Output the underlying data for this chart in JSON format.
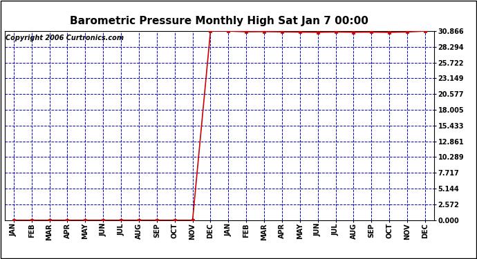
{
  "title": "Barometric Pressure Monthly High Sat Jan 7 00:00",
  "copyright": "Copyright 2006 Curtronics.com",
  "x_labels": [
    "JAN",
    "FEB",
    "MAR",
    "APR",
    "MAY",
    "JUN",
    "JUL",
    "AUG",
    "SEP",
    "OCT",
    "NOV",
    "DEC",
    "JAN",
    "FEB",
    "MAR",
    "APR",
    "MAY",
    "JUN",
    "JUL",
    "AUG",
    "SEP",
    "OCT",
    "NOV",
    "DEC"
  ],
  "y_max": 30.866,
  "y_min": 0.0,
  "y_ticks": [
    0.0,
    2.572,
    5.144,
    7.717,
    10.289,
    12.861,
    15.433,
    18.005,
    20.577,
    23.149,
    25.722,
    28.294,
    30.866
  ],
  "data_values": [
    0.0,
    0.0,
    0.0,
    0.0,
    0.0,
    0.0,
    0.0,
    0.0,
    0.0,
    0.0,
    0.0,
    30.866,
    30.866,
    30.75,
    30.78,
    30.74,
    30.7,
    30.67,
    30.72,
    30.68,
    30.7,
    30.66,
    30.72,
    30.866
  ],
  "line_color": "#CC0000",
  "marker_color": "#CC0000",
  "grid_color": "#0000CC",
  "bg_color": "#FFFFFF",
  "plot_bg_color": "#FFFFFF",
  "title_fontsize": 11,
  "copyright_fontsize": 7,
  "tick_fontsize": 7,
  "marker_size": 3
}
